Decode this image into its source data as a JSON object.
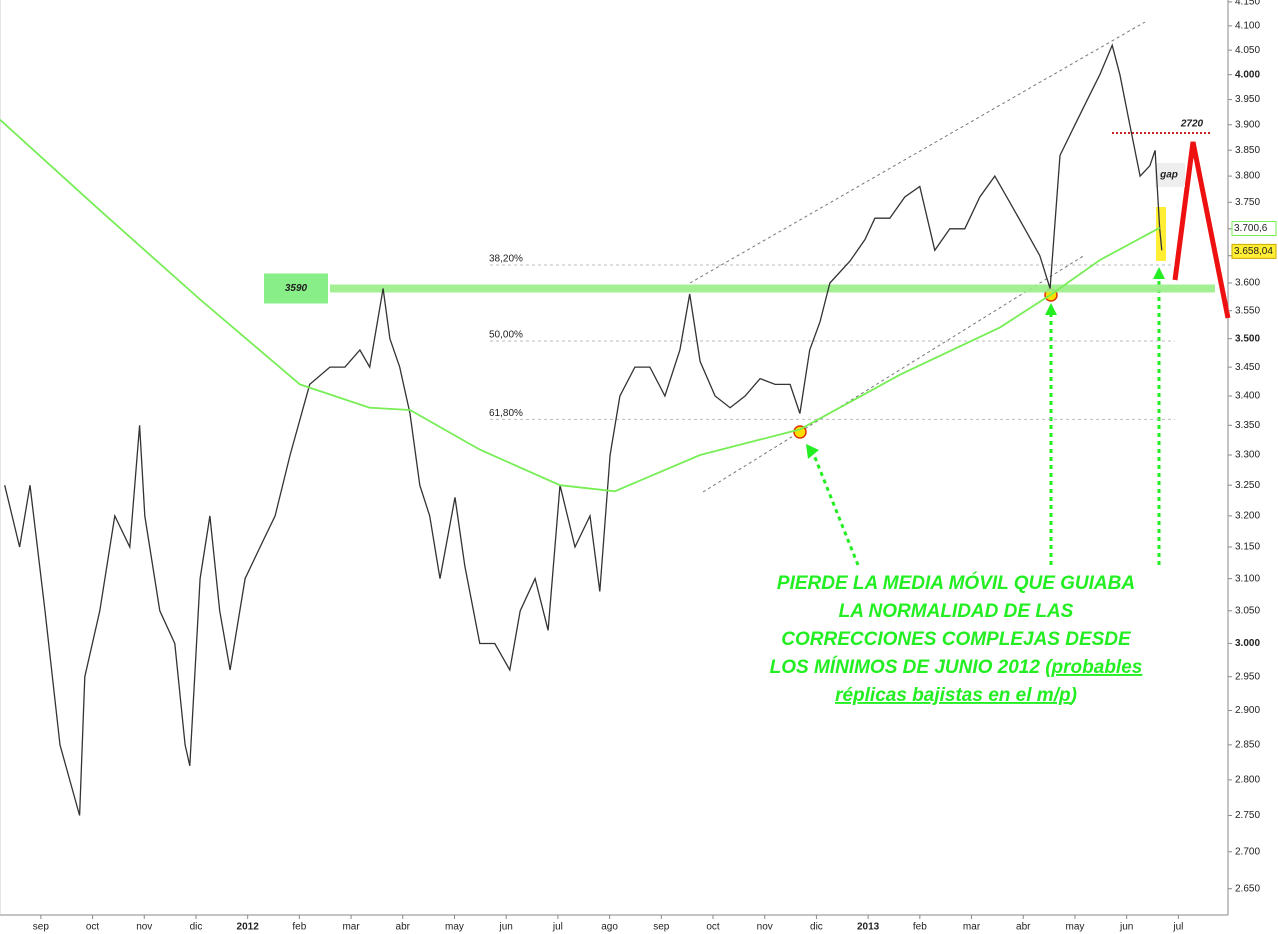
{
  "chart_data": {
    "type": "line",
    "xlim": [
      -0.79,
      22.96
    ],
    "xticks": [
      {
        "value": 0,
        "label": "sep"
      },
      {
        "value": 1,
        "label": "oct"
      },
      {
        "value": 2,
        "label": "nov"
      },
      {
        "value": 3,
        "label": "dic"
      },
      {
        "value": 4,
        "label": "2012"
      },
      {
        "value": 5,
        "label": "feb"
      },
      {
        "value": 6,
        "label": "mar"
      },
      {
        "value": 7,
        "label": "abr"
      },
      {
        "value": 8,
        "label": "may"
      },
      {
        "value": 9,
        "label": "jun"
      },
      {
        "value": 10,
        "label": "jul"
      },
      {
        "value": 11,
        "label": "ago"
      },
      {
        "value": 12,
        "label": "sep"
      },
      {
        "value": 13,
        "label": "oct"
      },
      {
        "value": 14,
        "label": "nov"
      },
      {
        "value": 15,
        "label": "dic"
      },
      {
        "value": 16,
        "label": "2013"
      },
      {
        "value": 17,
        "label": "feb"
      },
      {
        "value": 18,
        "label": "mar"
      },
      {
        "value": 19,
        "label": "abr"
      },
      {
        "value": 20,
        "label": "may"
      },
      {
        "value": 21,
        "label": "jun"
      },
      {
        "value": 22,
        "label": "jul"
      }
    ],
    "ylim": [
      2615,
      4154
    ],
    "log_scale": true,
    "yticks": [
      {
        "value": 2650,
        "label": "2.650"
      },
      {
        "value": 2700,
        "label": "2.700"
      },
      {
        "value": 2750,
        "label": "2.750"
      },
      {
        "value": 2800,
        "label": "2.800"
      },
      {
        "value": 2850,
        "label": "2.850"
      },
      {
        "value": 2900,
        "label": "2.900"
      },
      {
        "value": 2950,
        "label": "2.950"
      },
      {
        "value": 3000,
        "label": "3.000"
      },
      {
        "value": 3050,
        "label": "3.050"
      },
      {
        "value": 3100,
        "label": "3.100"
      },
      {
        "value": 3150,
        "label": "3.150"
      },
      {
        "value": 3200,
        "label": "3.200"
      },
      {
        "value": 3250,
        "label": "3.250"
      },
      {
        "value": 3300,
        "label": "3.300"
      },
      {
        "value": 3350,
        "label": "3.350"
      },
      {
        "value": 3400,
        "label": "3.400"
      },
      {
        "value": 3450,
        "label": "3.450"
      },
      {
        "value": 3500,
        "label": "3.500"
      },
      {
        "value": 3550,
        "label": "3.550"
      },
      {
        "value": 3600,
        "label": "3.600"
      },
      {
        "value": 3650,
        "label": "3.650"
      },
      {
        "value": 3700,
        "label": "3.700"
      },
      {
        "value": 3750,
        "label": "3.750"
      },
      {
        "value": 3800,
        "label": "3.800"
      },
      {
        "value": 3850,
        "label": "3.850"
      },
      {
        "value": 3900,
        "label": "3.900"
      },
      {
        "value": 3950,
        "label": "3.950"
      },
      {
        "value": 4000,
        "label": "4.000"
      },
      {
        "value": 4050,
        "label": "4.050"
      },
      {
        "value": 4100,
        "label": "4.100"
      },
      {
        "value": 4150,
        "label": "4.150"
      }
    ],
    "series": [
      {
        "color": "#333333",
        "x": [
          -0.7,
          -0.41,
          -0.21,
          0.08,
          0.37,
          0.75,
          0.85,
          1.14,
          1.43,
          1.72,
          1.91,
          2.01,
          2.3,
          2.59,
          2.79,
          2.88,
          3.08,
          3.27,
          3.46,
          3.66,
          3.95,
          4.24,
          4.53,
          4.82,
          5.2,
          5.59,
          5.88,
          6.17,
          6.36,
          6.62,
          6.75,
          6.94,
          7.14,
          7.33,
          7.52,
          7.72,
          8.01,
          8.2,
          8.49,
          8.78,
          9.07,
          9.27,
          9.56,
          9.81,
          10.04,
          10.33,
          10.62,
          10.81,
          11.01,
          11.2,
          11.49,
          11.78,
          12.07,
          12.36,
          12.55,
          12.75,
          13.04,
          13.33,
          13.62,
          13.91,
          14.2,
          14.49,
          14.68,
          14.87,
          15.07,
          15.26,
          15.65,
          15.94,
          16.13,
          16.42,
          16.71,
          17.0,
          17.29,
          17.58,
          17.87,
          18.16,
          18.45,
          18.74,
          19.03,
          19.32,
          19.52,
          19.71,
          20.0,
          20.29,
          20.48,
          20.72,
          20.87,
          21.06,
          21.26,
          21.45,
          21.55,
          21.64,
          21.68
        ],
        "values": [
          3250,
          3150,
          3250,
          3050,
          2850,
          2750,
          2950,
          3050,
          3200,
          3150,
          3350,
          3200,
          3050,
          3000,
          2850,
          2820,
          3100,
          3200,
          3050,
          2960,
          3100,
          3150,
          3200,
          3300,
          3420,
          3450,
          3450,
          3480,
          3450,
          3590,
          3500,
          3450,
          3370,
          3250,
          3200,
          3100,
          3230,
          3120,
          3000,
          3000,
          2960,
          3050,
          3100,
          3020,
          3250,
          3150,
          3200,
          3080,
          3300,
          3400,
          3450,
          3450,
          3400,
          3480,
          3580,
          3460,
          3400,
          3380,
          3400,
          3430,
          3420,
          3420,
          3370,
          3480,
          3530,
          3600,
          3640,
          3680,
          3720,
          3720,
          3760,
          3780,
          3660,
          3700,
          3700,
          3760,
          3800,
          3750,
          3700,
          3650,
          3590,
          3840,
          3900,
          3960,
          4000,
          4060,
          4000,
          3900,
          3800,
          3820,
          3850,
          3700,
          3660
        ]
      },
      {
        "color": "#77ee55",
        "x": [
          -0.79,
          1.14,
          3.08,
          5.01,
          6.36,
          7.14,
          8.49,
          10.04,
          11.1,
          12.75,
          14.68,
          16.62,
          18.55,
          19.52,
          20.48,
          21.64
        ],
        "values": [
          3910,
          3735,
          3570,
          3420,
          3380,
          3376,
          3309,
          3250,
          3240,
          3300,
          3343,
          3437,
          3520,
          3578,
          3642,
          3702
        ]
      }
    ],
    "last_labels": [
      {
        "value": 3700.6,
        "label": "3.700,6"
      },
      {
        "value": 3658.04,
        "label": "3.658,04"
      }
    ],
    "fibonacci": [
      {
        "value": 3633,
        "label": "38,20%"
      },
      {
        "value": 3496,
        "label": "50,00%"
      },
      {
        "value": 3360,
        "label": "61,80%"
      }
    ],
    "support_level": 3590,
    "support_label": "3590",
    "resistance_label": "2720",
    "gap_label": "gap",
    "comment": [
      [
        "PIERDE LA MEDIA MÓVIL QUE GUIABA"
      ],
      [
        "LA NORMALIDAD DE LAS"
      ],
      [
        "CORRECCIONES COMPLEJAS DESDE"
      ],
      [
        "LOS MÍNIMOS DE JUNIO 2012 (",
        "probables"
      ],
      [
        "réplicas bajistas en el m/p",
        ")"
      ]
    ]
  }
}
